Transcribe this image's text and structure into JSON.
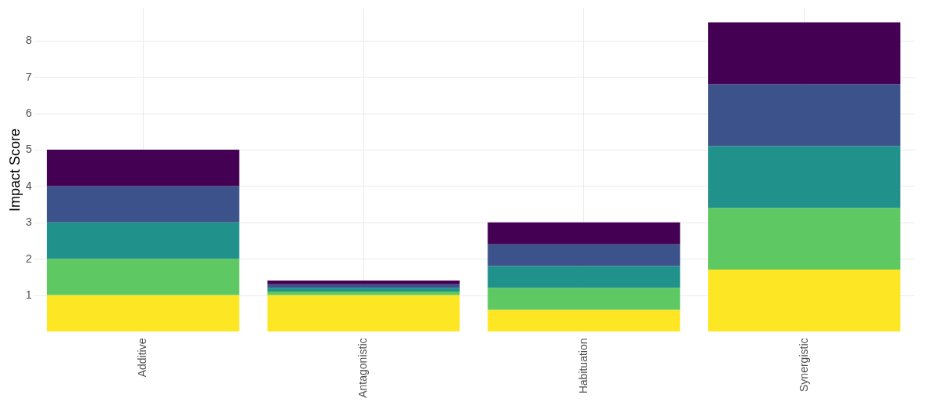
{
  "chart_data": {
    "type": "bar",
    "ylabel": "Impact Score",
    "stacked": true,
    "categories": [
      "Additive",
      "Antagonistic",
      "Habituation",
      "Synergistic"
    ],
    "series": [
      {
        "color": "#fde725",
        "values": [
          1,
          1,
          0.6,
          1.7
        ]
      },
      {
        "color": "#5ec962",
        "values": [
          1,
          0.1,
          0.6,
          1.7
        ]
      },
      {
        "color": "#21918c",
        "values": [
          1,
          0.1,
          0.6,
          1.7
        ]
      },
      {
        "color": "#3b528b",
        "values": [
          1,
          0.1,
          0.6,
          1.7
        ]
      },
      {
        "color": "#440154",
        "values": [
          1,
          0.1,
          0.6,
          1.7
        ]
      }
    ],
    "ylim": [
      0,
      8.9
    ],
    "yticks": [
      1,
      2,
      3,
      4,
      5,
      6,
      7,
      8
    ],
    "grid": true,
    "legend": false
  }
}
